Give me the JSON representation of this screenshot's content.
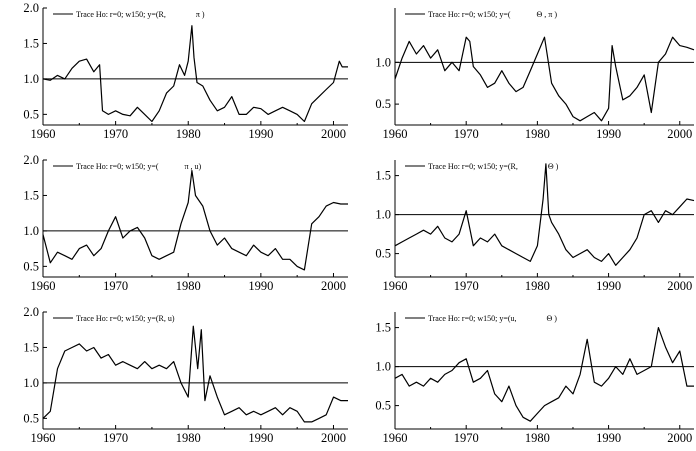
{
  "chart_data": [
    {
      "type": "line",
      "legend": "Trace Ho: r=0; w150; y=(R,               π )",
      "xlim": [
        1960,
        2002
      ],
      "ylim": [
        0.35,
        2.0
      ],
      "xticks": [
        "1960",
        "1970",
        "1980",
        "1990",
        "2000"
      ],
      "yticks": [
        "0.5",
        "1.0",
        "1.5",
        "2.0"
      ],
      "reference_line": 1.0,
      "series": [
        {
          "x": [
            1960,
            1961,
            1962,
            1963,
            1964,
            1965,
            1966,
            1967,
            1967.8,
            1968.2,
            1969,
            1970,
            1971,
            1972,
            1973,
            1974,
            1975,
            1976,
            1977,
            1978,
            1978.8,
            1979.5,
            1980,
            1980.5,
            1980.8,
            1981.2,
            1982,
            1983,
            1984,
            1985,
            1986,
            1987,
            1988,
            1989,
            1990,
            1991,
            1992,
            1993,
            1994,
            1995,
            1996,
            1997,
            1998,
            1999,
            2000,
            2000.8,
            2001.2,
            2002
          ],
          "y": [
            1.0,
            0.98,
            1.05,
            1.0,
            1.15,
            1.25,
            1.28,
            1.1,
            1.2,
            0.55,
            0.5,
            0.55,
            0.5,
            0.48,
            0.6,
            0.5,
            0.4,
            0.55,
            0.8,
            0.9,
            1.2,
            1.05,
            1.25,
            1.75,
            1.3,
            0.95,
            0.9,
            0.7,
            0.55,
            0.6,
            0.75,
            0.5,
            0.5,
            0.6,
            0.58,
            0.5,
            0.55,
            0.6,
            0.55,
            0.5,
            0.4,
            0.65,
            0.75,
            0.85,
            0.95,
            1.25,
            1.17,
            1.17
          ]
        }
      ]
    },
    {
      "type": "line",
      "legend": "Trace Ho: r=0; w150; y=(             Θ , π )",
      "xlim": [
        1960,
        2002
      ],
      "ylim": [
        0.25,
        1.65
      ],
      "xticks": [
        "1960",
        "1970",
        "1980",
        "1990",
        "2000"
      ],
      "yticks": [
        "0.5",
        "1.0"
      ],
      "reference_line": 1.0,
      "series": [
        {
          "x": [
            1960,
            1961,
            1962,
            1963,
            1964,
            1965,
            1966,
            1967,
            1968,
            1969,
            1970,
            1970.5,
            1971,
            1972,
            1973,
            1974,
            1975,
            1976,
            1977,
            1978,
            1979,
            1980,
            1981,
            1982,
            1983,
            1984,
            1985,
            1986,
            1987,
            1988,
            1989,
            1990,
            1990.5,
            1991,
            1992,
            1993,
            1994,
            1995,
            1996,
            1997,
            1998,
            1999,
            2000,
            2001,
            2002
          ],
          "y": [
            0.8,
            1.05,
            1.25,
            1.1,
            1.2,
            1.05,
            1.15,
            0.9,
            1.0,
            0.9,
            1.3,
            1.25,
            0.95,
            0.85,
            0.7,
            0.75,
            0.9,
            0.75,
            0.65,
            0.7,
            0.9,
            1.1,
            1.3,
            0.75,
            0.6,
            0.5,
            0.35,
            0.3,
            0.35,
            0.4,
            0.3,
            0.45,
            1.2,
            0.95,
            0.55,
            0.6,
            0.7,
            0.85,
            0.4,
            1.0,
            1.1,
            1.3,
            1.2,
            1.18,
            1.15
          ]
        }
      ]
    },
    {
      "type": "line",
      "legend": "Trace Ho: r=0; w150; y=(             π , u)",
      "xlim": [
        1960,
        2002
      ],
      "ylim": [
        0.35,
        2.0
      ],
      "xticks": [
        "1960",
        "1970",
        "1980",
        "1990",
        "2000"
      ],
      "yticks": [
        "0.5",
        "1.0",
        "1.5",
        "2.0"
      ],
      "reference_line": 1.0,
      "series": [
        {
          "x": [
            1960,
            1961,
            1962,
            1963,
            1964,
            1965,
            1966,
            1967,
            1968,
            1969,
            1970,
            1971,
            1972,
            1973,
            1974,
            1975,
            1976,
            1977,
            1978,
            1979,
            1980,
            1980.5,
            1981,
            1982,
            1983,
            1984,
            1985,
            1986,
            1987,
            1988,
            1989,
            1990,
            1991,
            1992,
            1993,
            1994,
            1995,
            1996,
            1997,
            1998,
            1999,
            2000,
            2001,
            2002
          ],
          "y": [
            0.95,
            0.55,
            0.7,
            0.65,
            0.6,
            0.75,
            0.8,
            0.65,
            0.75,
            1.0,
            1.2,
            0.9,
            1.0,
            1.05,
            0.9,
            0.65,
            0.6,
            0.65,
            0.7,
            1.1,
            1.4,
            1.85,
            1.5,
            1.35,
            1.0,
            0.8,
            0.9,
            0.75,
            0.7,
            0.65,
            0.8,
            0.7,
            0.65,
            0.75,
            0.6,
            0.6,
            0.5,
            0.45,
            1.1,
            1.2,
            1.35,
            1.4,
            1.38,
            1.38
          ]
        }
      ]
    },
    {
      "type": "line",
      "legend": "Trace Ho: r=0; w150; y=(R,               Θ )",
      "xlim": [
        1960,
        2002
      ],
      "ylim": [
        0.2,
        1.7
      ],
      "xticks": [
        "1960",
        "1970",
        "1980",
        "1990",
        "2000"
      ],
      "yticks": [
        "0.5",
        "1.0",
        "1.5"
      ],
      "reference_line": 1.0,
      "series": [
        {
          "x": [
            1960,
            1961,
            1962,
            1963,
            1964,
            1965,
            1966,
            1967,
            1968,
            1969,
            1970,
            1971,
            1972,
            1973,
            1974,
            1975,
            1976,
            1977,
            1978,
            1979,
            1980,
            1980.8,
            1981.2,
            1981.6,
            1982,
            1983,
            1984,
            1985,
            1986,
            1987,
            1988,
            1989,
            1990,
            1991,
            1992,
            1993,
            1994,
            1995,
            1996,
            1997,
            1998,
            1999,
            2000,
            2001,
            2002
          ],
          "y": [
            0.6,
            0.65,
            0.7,
            0.75,
            0.8,
            0.75,
            0.85,
            0.7,
            0.65,
            0.75,
            1.05,
            0.6,
            0.7,
            0.65,
            0.75,
            0.6,
            0.55,
            0.5,
            0.45,
            0.4,
            0.6,
            1.2,
            1.65,
            1.0,
            0.9,
            0.75,
            0.55,
            0.45,
            0.5,
            0.55,
            0.45,
            0.4,
            0.5,
            0.35,
            0.45,
            0.55,
            0.7,
            1.0,
            1.05,
            0.9,
            1.05,
            1.0,
            1.1,
            1.2,
            1.18
          ]
        }
      ]
    },
    {
      "type": "line",
      "legend": "Trace Ho: r=0; w150; y=(R, u)",
      "xlim": [
        1960,
        2002
      ],
      "ylim": [
        0.35,
        2.0
      ],
      "xticks": [
        "1960",
        "1970",
        "1980",
        "1990",
        "2000"
      ],
      "yticks": [
        "0.5",
        "1.0",
        "1.5",
        "2.0"
      ],
      "reference_line": 1.0,
      "series": [
        {
          "x": [
            1960,
            1961,
            1962,
            1963,
            1964,
            1965,
            1966,
            1967,
            1968,
            1969,
            1970,
            1971,
            1972,
            1973,
            1974,
            1975,
            1976,
            1977,
            1978,
            1979,
            1980,
            1980.7,
            1981.3,
            1981.8,
            1982.3,
            1983,
            1984,
            1985,
            1986,
            1987,
            1988,
            1989,
            1990,
            1991,
            1992,
            1993,
            1994,
            1995,
            1996,
            1997,
            1998,
            1999,
            2000,
            2001,
            2002
          ],
          "y": [
            0.5,
            0.6,
            1.2,
            1.45,
            1.5,
            1.55,
            1.45,
            1.5,
            1.35,
            1.4,
            1.25,
            1.3,
            1.25,
            1.2,
            1.3,
            1.2,
            1.25,
            1.2,
            1.3,
            1.0,
            0.8,
            1.8,
            1.2,
            1.75,
            0.75,
            1.1,
            0.8,
            0.55,
            0.6,
            0.65,
            0.55,
            0.6,
            0.55,
            0.6,
            0.65,
            0.55,
            0.65,
            0.6,
            0.45,
            0.45,
            0.5,
            0.55,
            0.8,
            0.75,
            0.75
          ]
        }
      ]
    },
    {
      "type": "line",
      "legend": "Trace Ho: r=0; w150; y=(u,               Θ )",
      "xlim": [
        1960,
        2002
      ],
      "ylim": [
        0.2,
        1.7
      ],
      "xticks": [
        "1960",
        "1970",
        "1980",
        "1990",
        "2000"
      ],
      "yticks": [
        "0.5",
        "1.0",
        "1.5"
      ],
      "reference_line": 1.0,
      "series": [
        {
          "x": [
            1960,
            1961,
            1962,
            1963,
            1964,
            1965,
            1966,
            1967,
            1968,
            1969,
            1970,
            1971,
            1972,
            1973,
            1974,
            1975,
            1976,
            1977,
            1978,
            1979,
            1980,
            1981,
            1982,
            1983,
            1984,
            1985,
            1986,
            1987,
            1988,
            1989,
            1990,
            1991,
            1992,
            1993,
            1994,
            1995,
            1996,
            1997,
            1998,
            1999,
            2000,
            2001,
            2002
          ],
          "y": [
            0.85,
            0.9,
            0.75,
            0.8,
            0.75,
            0.85,
            0.8,
            0.9,
            0.95,
            1.05,
            1.1,
            0.8,
            0.85,
            0.95,
            0.65,
            0.55,
            0.75,
            0.5,
            0.35,
            0.3,
            0.4,
            0.5,
            0.55,
            0.6,
            0.75,
            0.65,
            0.9,
            1.35,
            0.8,
            0.75,
            0.85,
            1.0,
            0.9,
            1.1,
            0.9,
            0.95,
            1.0,
            1.5,
            1.25,
            1.05,
            1.2,
            0.75,
            0.75
          ]
        }
      ]
    }
  ]
}
